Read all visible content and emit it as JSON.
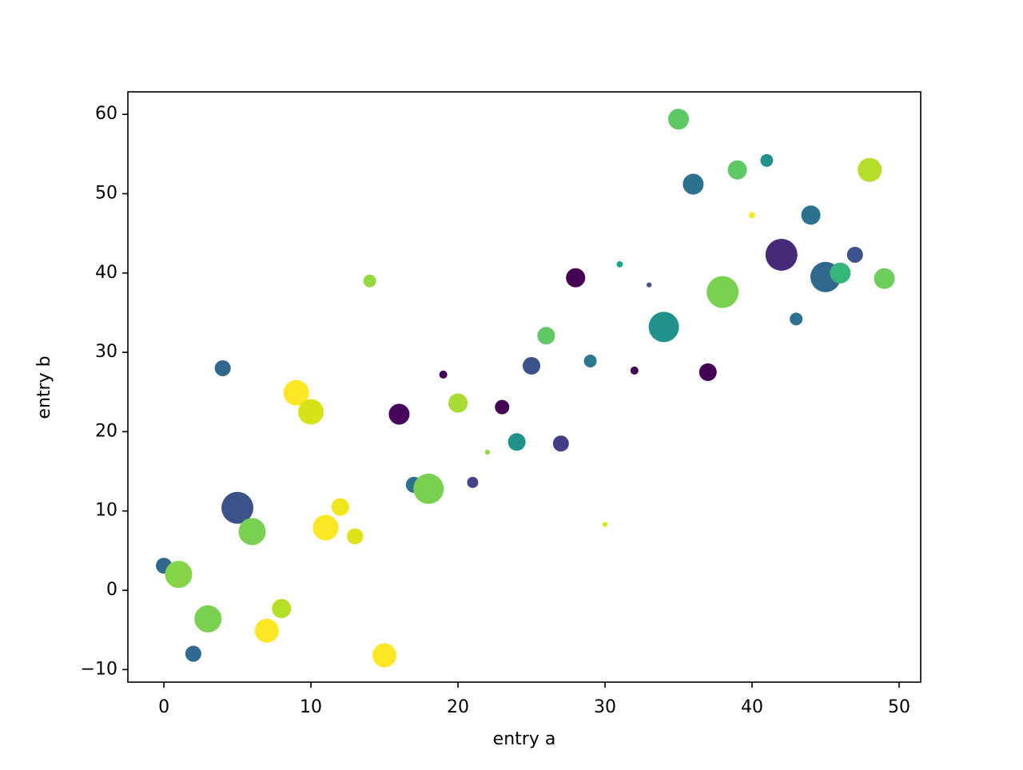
{
  "chart_data": {
    "type": "scatter",
    "x_label": "entry a",
    "y_label": "entry b",
    "x": [
      0,
      1,
      2,
      3,
      4,
      5,
      6,
      7,
      8,
      9,
      10,
      11,
      12,
      13,
      14,
      15,
      16,
      17,
      18,
      19,
      20,
      21,
      22,
      23,
      24,
      25,
      26,
      27,
      28,
      29,
      30,
      31,
      32,
      33,
      34,
      35,
      36,
      37,
      38,
      39,
      40,
      41,
      42,
      43,
      44,
      45,
      46,
      47,
      48,
      49
    ],
    "y": [
      3.1,
      2.0,
      -8.0,
      -3.6,
      28.0,
      10.4,
      7.4,
      -5.1,
      -2.3,
      24.9,
      22.5,
      7.9,
      10.5,
      6.8,
      39.0,
      -8.2,
      22.2,
      13.3,
      12.8,
      27.2,
      23.6,
      13.6,
      17.4,
      23.1,
      18.7,
      28.3,
      32.1,
      18.5,
      39.4,
      28.9,
      8.3,
      41.1,
      27.7,
      38.5,
      33.2,
      59.4,
      51.2,
      27.5,
      37.6,
      53.0,
      47.3,
      54.2,
      42.3,
      34.2,
      47.3,
      39.5,
      40.0,
      42.3,
      53.0,
      39.3
    ],
    "sizes": [
      52,
      150,
      52,
      150,
      52,
      207,
      150,
      117,
      75,
      133,
      133,
      133,
      63,
      52,
      33,
      117,
      88,
      52,
      187,
      13,
      75,
      25,
      5,
      42,
      63,
      63,
      63,
      52,
      75,
      33,
      5,
      8,
      13,
      5,
      187,
      88,
      88,
      63,
      207,
      75,
      8,
      33,
      207,
      33,
      75,
      187,
      88,
      52,
      117,
      88
    ],
    "colors": [
      "#31688e",
      "#86d549",
      "#31688e",
      "#7ad151",
      "#31688e",
      "#3b528b",
      "#7ad151",
      "#fde725",
      "#b5de2b",
      "#fde725",
      "#d8e219",
      "#fde725",
      "#f1e51d",
      "#dde318",
      "#95d840",
      "#fde725",
      "#46085c",
      "#2c728e",
      "#7ad151",
      "#440154",
      "#a8db34",
      "#414487",
      "#8fd744",
      "#440154",
      "#21918c",
      "#3b528b",
      "#5ec962",
      "#433e85",
      "#440154",
      "#2a788e",
      "#dde318",
      "#20a486",
      "#440154",
      "#3b528b",
      "#21918c",
      "#5ec962",
      "#2c728e",
      "#440154",
      "#7ad151",
      "#5ec962",
      "#fde725",
      "#21918c",
      "#482878",
      "#2c728e",
      "#2c728e",
      "#31688e",
      "#35b779",
      "#3b528b",
      "#b5de2b",
      "#6ccd5a"
    ],
    "xlim": [
      -2.45,
      51.47
    ],
    "ylim": [
      -11.58,
      62.84
    ],
    "xticks": [
      0,
      10,
      20,
      30,
      40,
      50
    ],
    "yticks": [
      {
        "value": -10,
        "label": "−10"
      },
      0,
      10,
      20,
      30,
      40,
      50,
      60
    ]
  }
}
